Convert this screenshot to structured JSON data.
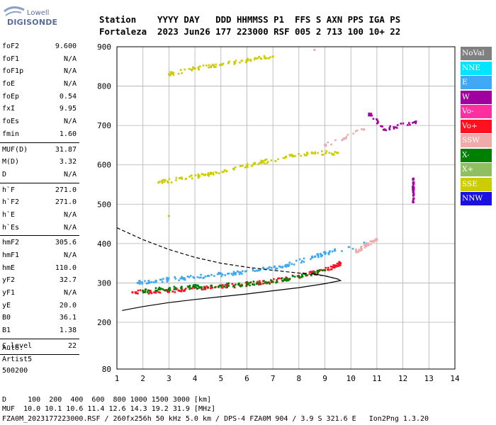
{
  "logo": {
    "line1": "Lowell",
    "line2": "DIGISONDE"
  },
  "header": {
    "line1": "Station    YYYY DAY   DDD HHMMSS P1  FFS S AXN PPS IGA PS",
    "line2": "Fortaleza  2023 Jun26 177 223000 RSF 005 2 713 100 10+ 22"
  },
  "params": {
    "group1": [
      {
        "name": "foF2",
        "value": "9.600"
      },
      {
        "name": "foF1",
        "value": "N/A"
      },
      {
        "name": "foF1p",
        "value": "N/A"
      },
      {
        "name": "foE",
        "value": "N/A"
      },
      {
        "name": "foEp",
        "value": "0.54"
      },
      {
        "name": "fxI",
        "value": "9.95"
      },
      {
        "name": "foEs",
        "value": "N/A"
      },
      {
        "name": "fmin",
        "value": "1.60"
      }
    ],
    "group2": [
      {
        "name": "MUF(D)",
        "value": "31.87"
      },
      {
        "name": "M(D)",
        "value": "3.32"
      },
      {
        "name": "D",
        "value": "N/A"
      }
    ],
    "group3": [
      {
        "name": "h`F",
        "value": "271.0"
      },
      {
        "name": "h`F2",
        "value": "271.0"
      },
      {
        "name": "h`E",
        "value": "N/A"
      },
      {
        "name": "h`Es",
        "value": "N/A"
      }
    ],
    "group4": [
      {
        "name": "hmF2",
        "value": "305.6"
      },
      {
        "name": "hmF1",
        "value": "N/A"
      },
      {
        "name": "hmE",
        "value": "110.0"
      },
      {
        "name": "yF2",
        "value": "32.7"
      },
      {
        "name": "yF1",
        "value": "N/A"
      },
      {
        "name": "yE",
        "value": "20.0"
      },
      {
        "name": "B0",
        "value": "36.1"
      },
      {
        "name": "B1",
        "value": "1.38"
      }
    ],
    "group5": [
      {
        "name": "C-level",
        "value": "22"
      }
    ]
  },
  "auto": {
    "line1": "Auto:",
    "line2": "Artist5",
    "line3": "500200"
  },
  "footer": {
    "d_line": "D     100  200  400  600  800 1000 1500 3000 [km]",
    "muf_line": "MUF  10.0 10.1 10.6 11.4 12.6 14.3 19.2 31.9 [MHz]",
    "info_line": "FZA0M_2023177223000.RSF / 260fx256h 50 kHz 5.0 km / DPS-4 FZA0M 904 / 3.9 S 321.6 E   Ion2Png 1.3.20"
  },
  "legend": [
    {
      "label": "NoVal",
      "color": "#808080"
    },
    {
      "label": "NNE",
      "color": "#00e5ff"
    },
    {
      "label": "E",
      "color": "#3fa9f5"
    },
    {
      "label": "W",
      "color": "#a000a0"
    },
    {
      "label": "Vo-",
      "color": "#ff2fa0"
    },
    {
      "label": "Vo+",
      "color": "#ff1020"
    },
    {
      "label": "SSW",
      "color": "#f0aaaa"
    },
    {
      "label": "X-",
      "color": "#008000"
    },
    {
      "label": "X+",
      "color": "#8fbf60"
    },
    {
      "label": "SSE",
      "color": "#cccc00"
    },
    {
      "label": "NNW",
      "color": "#1a10e0"
    }
  ],
  "chart_data": {
    "type": "scatter",
    "xlim": [
      1,
      14
    ],
    "ylim": [
      80,
      900
    ],
    "x_ticks": [
      1,
      2,
      3,
      4,
      5,
      6,
      7,
      8,
      9,
      10,
      11,
      12,
      13,
      14
    ],
    "y_ticks": [
      80,
      200,
      300,
      400,
      500,
      600,
      700,
      800,
      900
    ],
    "grid": true,
    "legend_position": "right",
    "series": [
      {
        "name": "E",
        "values": [
          [
            1.8,
            300
          ],
          [
            2.5,
            305
          ],
          [
            3.5,
            312
          ],
          [
            4.5,
            318
          ],
          [
            5.5,
            325
          ],
          [
            6.5,
            333
          ],
          [
            7.5,
            345
          ],
          [
            8.5,
            365
          ],
          [
            9.0,
            375
          ],
          [
            10.6,
            400
          ]
        ]
      },
      {
        "name": "Vo+",
        "values": [
          [
            1.6,
            276
          ],
          [
            2.5,
            278
          ],
          [
            3.5,
            283
          ],
          [
            4.5,
            288
          ],
          [
            5.5,
            293
          ],
          [
            6.5,
            300
          ],
          [
            7.5,
            310
          ],
          [
            8.5,
            325
          ],
          [
            9.3,
            340
          ],
          [
            9.6,
            350
          ]
        ]
      },
      {
        "name": "X-",
        "values": [
          [
            2.0,
            280
          ],
          [
            3.0,
            285
          ],
          [
            4.0,
            290
          ],
          [
            5.0,
            293
          ],
          [
            6.0,
            298
          ],
          [
            7.0,
            303
          ],
          [
            8.0,
            315
          ],
          [
            9.0,
            332
          ]
        ]
      },
      {
        "name": "SSW",
        "values": [
          [
            10.2,
            380
          ],
          [
            10.6,
            395
          ],
          [
            11.0,
            410
          ],
          [
            9.0,
            650
          ],
          [
            10.5,
            690
          ],
          [
            8.6,
            892
          ]
        ]
      },
      {
        "name": "SSE",
        "values": [
          [
            2.6,
            555
          ],
          [
            3.5,
            565
          ],
          [
            4.5,
            575
          ],
          [
            5.5,
            590
          ],
          [
            6.5,
            605
          ],
          [
            7.5,
            620
          ],
          [
            8.5,
            630
          ],
          [
            9.5,
            630
          ],
          [
            3.0,
            830
          ],
          [
            4.0,
            845
          ],
          [
            5.0,
            855
          ],
          [
            6.0,
            865
          ],
          [
            7.0,
            875
          ],
          [
            3.0,
            470
          ]
        ]
      },
      {
        "name": "W",
        "values": [
          [
            10.7,
            730
          ],
          [
            11.3,
            690
          ],
          [
            12.5,
            710
          ],
          [
            12.4,
            505
          ],
          [
            12.4,
            540
          ],
          [
            12.4,
            565
          ]
        ]
      }
    ],
    "curves": [
      {
        "name": "virtual_height_trace",
        "style": "dashed",
        "values": [
          [
            1.0,
            440
          ],
          [
            2.0,
            410
          ],
          [
            3.0,
            385
          ],
          [
            4.0,
            365
          ],
          [
            5.0,
            350
          ],
          [
            6.0,
            340
          ],
          [
            7.0,
            332
          ],
          [
            8.0,
            325
          ],
          [
            9.0,
            318
          ],
          [
            9.5,
            310
          ]
        ]
      },
      {
        "name": "true_height_profile",
        "style": "solid",
        "values": [
          [
            1.2,
            230
          ],
          [
            2.0,
            240
          ],
          [
            3.0,
            250
          ],
          [
            4.0,
            258
          ],
          [
            5.0,
            265
          ],
          [
            6.0,
            272
          ],
          [
            7.0,
            280
          ],
          [
            8.0,
            288
          ],
          [
            9.0,
            298
          ],
          [
            9.6,
            306
          ],
          [
            9.5,
            310
          ],
          [
            9.0,
            318
          ],
          [
            8.5,
            324
          ]
        ]
      }
    ]
  }
}
